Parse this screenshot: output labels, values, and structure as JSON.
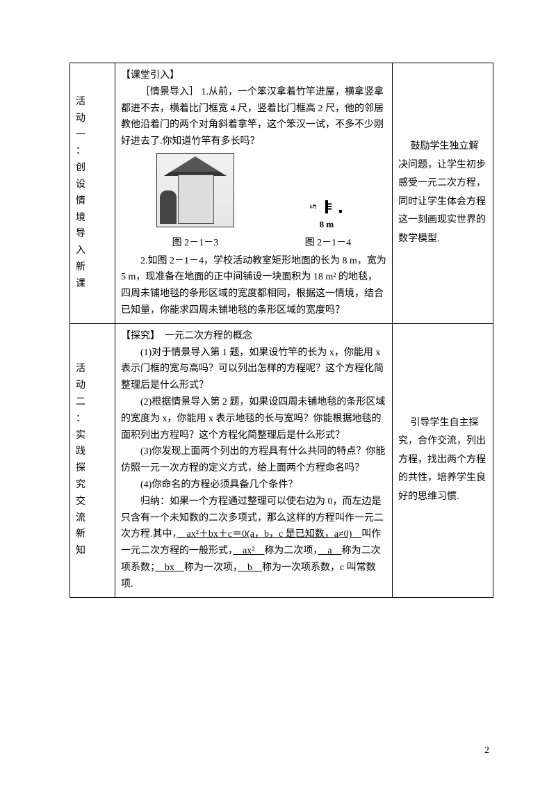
{
  "row1": {
    "activity_label": [
      "活",
      "动",
      "一",
      "：",
      "创",
      "设",
      "情",
      "境",
      "导",
      "入",
      "新",
      "课"
    ],
    "head": "【课堂引入】",
    "para1_a": "［情景导入］ 1.从前，一个笨汉拿着竹竿进屋，横拿竖拿都进不去，横着比门框宽 4 尺，竖着比门框高 2 尺，他的邻居教他沿着门的两个对角斜着拿竿，这个笨汉一试，不多不少刚好进去了.你知道竹竿有多长吗？",
    "fig1_cap": "图 2－1－3",
    "fig2_cap": "图 2－1－4",
    "dim_w": "8 m",
    "dim_h": "5 m",
    "para2": "2.如图 2－1－4，学校活动教室矩形地面的长为 8 m，宽为 5 m，现准备在地面的正中间铺设一块面积为 18 m² 的地毯，四周未铺地毯的条形区域的宽度都相同，根据这一情境，结合已知量，你能求四周未铺地毯的条形区域的宽度吗？",
    "note": "　 鼓励学生独立解决问题，让学生初步感受一元二次方程，同时让学生体会方程这一刻画现实世界的数学模型."
  },
  "row2": {
    "activity_label": [
      "活",
      "动",
      "二",
      "：",
      "实",
      "践",
      "探",
      "究",
      "交",
      "流",
      "新",
      "知"
    ],
    "head": "【探究】　一元二次方程的概念",
    "q1": "(1)对于情景导入第 1 题，如果设竹竿的长为 x，你能用 x 表示门框的宽与高吗？可以列出怎样的方程呢？这个方程化简整理后是什么形式？",
    "q2": "(2)根据情景导入第 2 题，如果设四周未铺地毯的条形区域的宽度为 x，你能用 x 表示地毯的长与宽吗？你能根据地毯的面积列出方程吗？这个方程化简整理后是什么形式？",
    "q3": "(3)你发现上面两个列出的方程具有什么共同的特点？你能仿照一元一次方程的定义方式，给上面两个方程命名吗？",
    "q4": "(4)你命名的方程必须具备几个条件？",
    "sum_a": "归纳：如果一个方程通过整理可以使右边为 0，而左边是只含有一个未知数的二次多项式，那么这样的方程叫作一元二次方程.其中，",
    "u1": "　ax²＋bx＋c＝0(a，b，c 是已知数，a≠0)　",
    "sum_b": "叫作一元二次方程的一般形式，",
    "u2": "　ax²　",
    "sum_c": "称为二次项，",
    "u3": "　a　",
    "sum_d": "称为二次项系数；",
    "u4": "　bx　",
    "sum_e": "称为一次项，",
    "u5": "　b　",
    "sum_f": "称为一次项系数，c 叫常数项.",
    "note": "　 引导学生自主探究，合作交流，列出方程，找出两个方程的共性，培养学生良好的思维习惯."
  },
  "page_number": "2"
}
